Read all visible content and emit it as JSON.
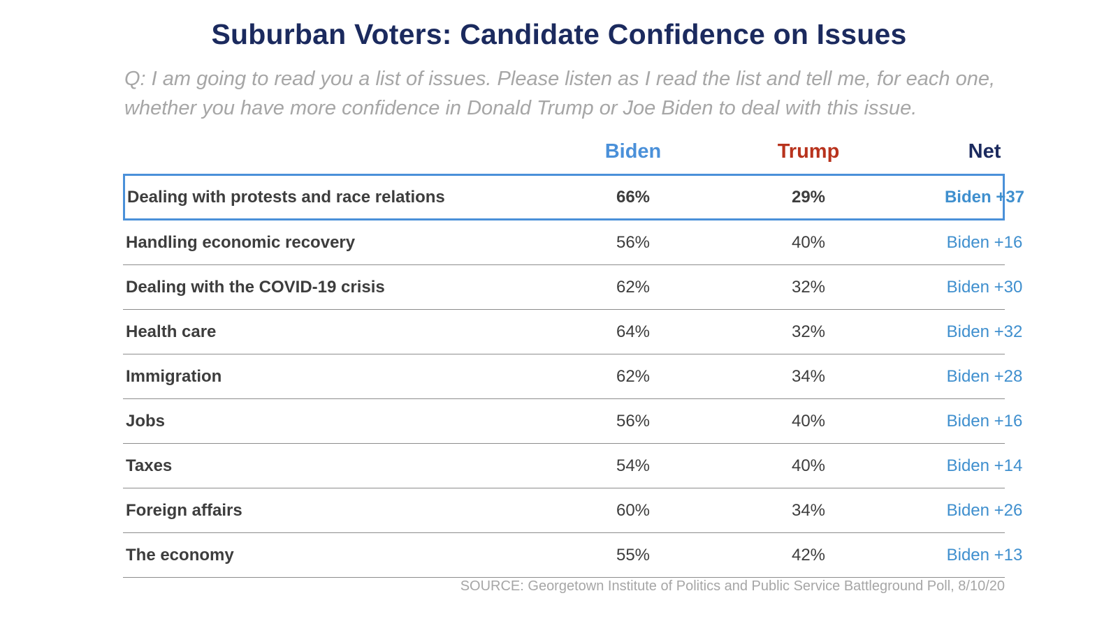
{
  "chart_data": {
    "type": "table",
    "title": "Suburban Voters: Candidate Confidence on Issues",
    "subtitle": "Q: I am going to read you a list of issues. Please listen as I read the list and tell me, for each one, whether you have more confidence in Donald Trump or Joe Biden to deal with this issue.",
    "columns": [
      "Biden",
      "Trump",
      "Net"
    ],
    "column_colors": {
      "Biden": "#4a90d9",
      "Trump": "#b8331d",
      "Net": "#1b2a5e"
    },
    "highlight_color": "#4a90d9",
    "rows": [
      {
        "issue": "Dealing with protests and race relations",
        "biden": "66%",
        "trump": "29%",
        "net": "Biden +37",
        "highlight": true
      },
      {
        "issue": "Handling economic recovery",
        "biden": "56%",
        "trump": "40%",
        "net": "Biden +16",
        "highlight": false
      },
      {
        "issue": "Dealing with the COVID-19 crisis",
        "biden": "62%",
        "trump": "32%",
        "net": "Biden +30",
        "highlight": false
      },
      {
        "issue": "Health care",
        "biden": "64%",
        "trump": "32%",
        "net": "Biden +32",
        "highlight": false
      },
      {
        "issue": "Immigration",
        "biden": "62%",
        "trump": "34%",
        "net": "Biden +28",
        "highlight": false
      },
      {
        "issue": "Jobs",
        "biden": "56%",
        "trump": "40%",
        "net": "Biden +16",
        "highlight": false
      },
      {
        "issue": "Taxes",
        "biden": "54%",
        "trump": "40%",
        "net": "Biden +14",
        "highlight": false
      },
      {
        "issue": "Foreign affairs",
        "biden": "60%",
        "trump": "34%",
        "net": "Biden +26",
        "highlight": false
      },
      {
        "issue": "The economy",
        "biden": "55%",
        "trump": "42%",
        "net": "Biden +13",
        "highlight": false
      }
    ],
    "source": "SOURCE: Georgetown Institute of Politics and Public Service Battleground Poll, 8/10/20"
  }
}
